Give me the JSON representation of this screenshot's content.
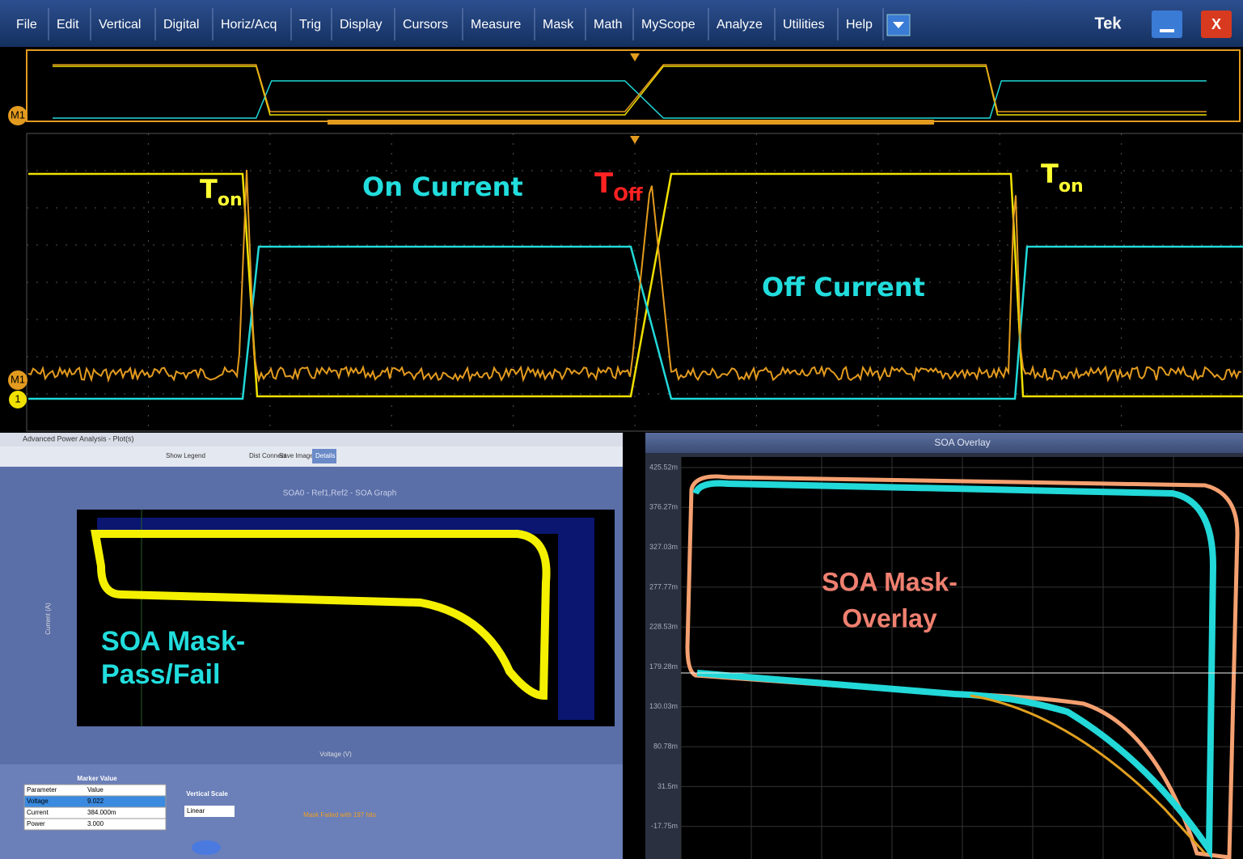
{
  "menu": {
    "items": [
      "File",
      "Edit",
      "Vertical",
      "Digital",
      "Horiz/Acq",
      "Trig",
      "Display",
      "Cursors",
      "Measure",
      "Mask",
      "Math",
      "MyScope",
      "Analyze",
      "Utilities",
      "Help"
    ],
    "brand": "Tek",
    "close": "X"
  },
  "scope": {
    "markers": {
      "overview": "M1",
      "math": "M1",
      "channel": "1"
    },
    "annotations": [
      {
        "text": "T",
        "sub": "on"
      },
      {
        "text": "On Current"
      },
      {
        "text": "T",
        "sub": "Off"
      },
      {
        "text": "T",
        "sub": "on"
      },
      {
        "text": "Off Current"
      }
    ]
  },
  "pass_fail_window": {
    "title": "Advanced Power Analysis - Plot(s)",
    "toolbar": {
      "show_legend": "Show Legend",
      "dist": "Dist Connect",
      "save": "Save Image(s)",
      "details": "Details"
    },
    "graph_title": "SOA0 - Ref1,Ref2 - SOA Graph",
    "y_label": "Current (A)",
    "x_label": "Voltage (V)",
    "annotation": [
      "SOA Mask-",
      "Pass/Fail"
    ],
    "marker_table": {
      "title": "Marker Value",
      "header": [
        "Parameter",
        "Value"
      ],
      "rows": [
        [
          "Voltage",
          "9.022"
        ],
        [
          "Current",
          "384.000m"
        ],
        [
          "Power",
          "3.000"
        ]
      ]
    },
    "vertical_scale": {
      "label": "Vertical Scale",
      "value": "Linear"
    },
    "status": "Mask Failed with 197 hits"
  },
  "overlay_window": {
    "title": "SOA Overlay",
    "yticks": [
      "425.52m",
      "376.27m",
      "327.03m",
      "277.77m",
      "228.53m",
      "179.28m",
      "130.03m",
      "80.78m",
      "31.5m",
      "-17.75m"
    ],
    "annotation": [
      "SOA Mask-",
      "Overlay"
    ]
  }
}
